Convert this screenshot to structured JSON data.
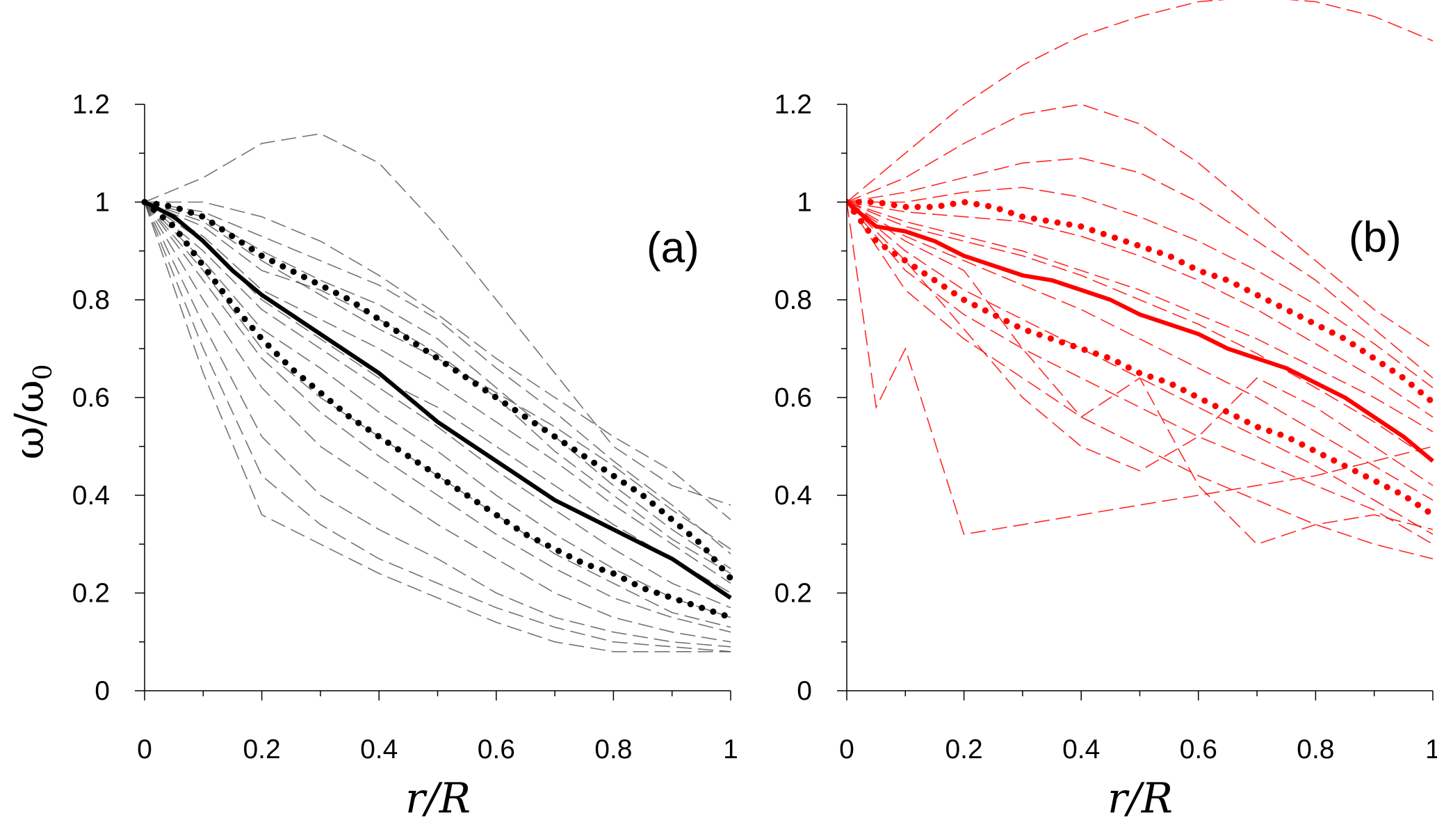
{
  "colors": {
    "left": "#000000",
    "left_trials": "#444444",
    "right": "#ff0000"
  },
  "chart_data": [
    {
      "type": "line",
      "panel_label": "(a)",
      "ylabel": "ω/ω",
      "ylabel_sub": "0",
      "xlabel": "r/R",
      "xlim": [
        0,
        1
      ],
      "ylim": [
        0,
        1.2
      ],
      "x_ticks": [
        "0",
        "0.2",
        "0.4",
        "0.6",
        "0.8",
        "1"
      ],
      "y_ticks": [
        "0",
        "0.2",
        "0.4",
        "0.6",
        "0.8",
        "1",
        "1.2"
      ],
      "mean": {
        "x": [
          0,
          0.05,
          0.1,
          0.15,
          0.2,
          0.25,
          0.3,
          0.35,
          0.4,
          0.45,
          0.5,
          0.55,
          0.6,
          0.65,
          0.7,
          0.75,
          0.8,
          0.85,
          0.9,
          0.95,
          1
        ],
        "y": [
          1,
          0.97,
          0.92,
          0.86,
          0.81,
          0.77,
          0.73,
          0.69,
          0.65,
          0.6,
          0.55,
          0.51,
          0.47,
          0.43,
          0.39,
          0.36,
          0.33,
          0.3,
          0.27,
          0.23,
          0.19
        ]
      },
      "upper_bound": {
        "x": [
          0,
          0.05,
          0.1,
          0.15,
          0.2,
          0.25,
          0.3,
          0.35,
          0.4,
          0.45,
          0.5,
          0.55,
          0.6,
          0.65,
          0.7,
          0.75,
          0.8,
          0.85,
          0.9,
          0.95,
          1
        ],
        "y": [
          1,
          0.99,
          0.97,
          0.93,
          0.89,
          0.86,
          0.83,
          0.8,
          0.76,
          0.72,
          0.68,
          0.64,
          0.6,
          0.56,
          0.52,
          0.48,
          0.44,
          0.4,
          0.35,
          0.3,
          0.23
        ]
      },
      "lower_bound": {
        "x": [
          0,
          0.05,
          0.1,
          0.15,
          0.2,
          0.25,
          0.3,
          0.35,
          0.4,
          0.45,
          0.5,
          0.55,
          0.6,
          0.65,
          0.7,
          0.75,
          0.8,
          0.85,
          0.9,
          0.95,
          1
        ],
        "y": [
          1,
          0.95,
          0.87,
          0.79,
          0.72,
          0.66,
          0.61,
          0.56,
          0.52,
          0.48,
          0.44,
          0.4,
          0.36,
          0.32,
          0.29,
          0.26,
          0.24,
          0.21,
          0.19,
          0.17,
          0.15
        ]
      },
      "trials": [
        {
          "x": [
            0,
            0.1,
            0.2,
            0.3,
            0.4,
            0.5,
            0.6,
            0.7,
            0.8,
            0.9,
            1
          ],
          "y": [
            1,
            1.05,
            1.12,
            1.14,
            1.08,
            0.95,
            0.8,
            0.65,
            0.5,
            0.42,
            0.38
          ]
        },
        {
          "x": [
            0,
            0.1,
            0.2,
            0.3,
            0.4,
            0.5,
            0.6,
            0.7,
            0.8,
            0.9,
            1
          ],
          "y": [
            1,
            1.0,
            0.97,
            0.92,
            0.85,
            0.77,
            0.68,
            0.6,
            0.52,
            0.45,
            0.35
          ]
        },
        {
          "x": [
            0,
            0.1,
            0.2,
            0.3,
            0.4,
            0.5,
            0.6,
            0.7,
            0.8,
            0.9,
            1
          ],
          "y": [
            1,
            0.98,
            0.93,
            0.88,
            0.83,
            0.76,
            0.66,
            0.57,
            0.47,
            0.38,
            0.28
          ]
        },
        {
          "x": [
            0,
            0.1,
            0.2,
            0.3,
            0.4,
            0.5,
            0.6,
            0.7,
            0.8,
            0.9,
            1
          ],
          "y": [
            1,
            0.97,
            0.9,
            0.84,
            0.79,
            0.72,
            0.62,
            0.52,
            0.42,
            0.33,
            0.25
          ]
        },
        {
          "x": [
            0,
            0.1,
            0.2,
            0.3,
            0.4,
            0.5,
            0.6,
            0.7,
            0.8,
            0.9,
            1
          ],
          "y": [
            1,
            0.95,
            0.86,
            0.82,
            0.76,
            0.69,
            0.6,
            0.49,
            0.4,
            0.31,
            0.24
          ]
        },
        {
          "x": [
            0,
            0.1,
            0.2,
            0.3,
            0.4,
            0.5,
            0.6,
            0.7,
            0.8,
            0.9,
            1
          ],
          "y": [
            1,
            0.93,
            0.82,
            0.76,
            0.7,
            0.63,
            0.55,
            0.47,
            0.38,
            0.3,
            0.22
          ]
        },
        {
          "x": [
            0,
            0.1,
            0.2,
            0.3,
            0.4,
            0.5,
            0.6,
            0.7,
            0.8,
            0.9,
            1
          ],
          "y": [
            1,
            0.9,
            0.78,
            0.7,
            0.62,
            0.54,
            0.45,
            0.37,
            0.29,
            0.22,
            0.17
          ]
        },
        {
          "x": [
            0,
            0.1,
            0.2,
            0.3,
            0.4,
            0.5,
            0.6,
            0.7,
            0.8,
            0.9,
            1
          ],
          "y": [
            1,
            0.88,
            0.74,
            0.66,
            0.57,
            0.49,
            0.4,
            0.32,
            0.25,
            0.19,
            0.15
          ]
        },
        {
          "x": [
            0,
            0.1,
            0.2,
            0.3,
            0.4,
            0.5,
            0.6,
            0.7,
            0.8,
            0.9,
            1
          ],
          "y": [
            1,
            0.86,
            0.7,
            0.6,
            0.52,
            0.44,
            0.36,
            0.28,
            0.22,
            0.16,
            0.13
          ]
        },
        {
          "x": [
            0,
            0.1,
            0.2,
            0.3,
            0.4,
            0.5,
            0.6,
            0.7,
            0.8,
            0.9,
            1
          ],
          "y": [
            1,
            0.84,
            0.68,
            0.57,
            0.48,
            0.4,
            0.32,
            0.25,
            0.19,
            0.15,
            0.12
          ]
        },
        {
          "x": [
            0,
            0.1,
            0.2,
            0.3,
            0.4,
            0.5,
            0.6,
            0.7,
            0.8,
            0.9,
            1
          ],
          "y": [
            1,
            0.8,
            0.62,
            0.5,
            0.42,
            0.34,
            0.27,
            0.2,
            0.15,
            0.12,
            0.1
          ]
        },
        {
          "x": [
            0,
            0.1,
            0.2,
            0.3,
            0.4,
            0.5,
            0.6,
            0.7,
            0.8,
            0.9,
            1
          ],
          "y": [
            1,
            0.75,
            0.52,
            0.4,
            0.33,
            0.27,
            0.2,
            0.15,
            0.12,
            0.1,
            0.09
          ]
        },
        {
          "x": [
            0,
            0.1,
            0.2,
            0.3,
            0.4,
            0.5,
            0.6,
            0.7,
            0.8,
            0.9,
            1
          ],
          "y": [
            1,
            0.7,
            0.44,
            0.34,
            0.27,
            0.22,
            0.17,
            0.13,
            0.1,
            0.09,
            0.08
          ]
        },
        {
          "x": [
            0,
            0.1,
            0.2,
            0.3,
            0.4,
            0.5,
            0.6,
            0.7,
            0.8,
            0.9,
            1
          ],
          "y": [
            1,
            0.65,
            0.36,
            0.3,
            0.24,
            0.19,
            0.14,
            0.1,
            0.08,
            0.08,
            0.08
          ]
        },
        {
          "x": [
            0,
            0.1,
            0.2,
            0.3,
            0.4,
            0.5,
            0.6,
            0.7,
            0.8,
            0.9,
            1
          ],
          "y": [
            1,
            0.96,
            0.88,
            0.81,
            0.74,
            0.68,
            0.61,
            0.54,
            0.46,
            0.37,
            0.29
          ]
        },
        {
          "x": [
            0,
            0.1,
            0.2,
            0.3,
            0.4,
            0.5,
            0.6,
            0.7,
            0.8,
            0.9,
            1
          ],
          "y": [
            1,
            0.92,
            0.8,
            0.72,
            0.64,
            0.58,
            0.5,
            0.42,
            0.34,
            0.27,
            0.2
          ]
        }
      ]
    },
    {
      "type": "line",
      "panel_label": "(b)",
      "xlabel": "r/R",
      "xlim": [
        0,
        1
      ],
      "ylim": [
        0,
        1.2
      ],
      "x_ticks": [
        "0",
        "0.2",
        "0.4",
        "0.6",
        "0.8",
        "1"
      ],
      "y_ticks": [
        "0",
        "0.2",
        "0.4",
        "0.6",
        "0.8",
        "1",
        "1.2"
      ],
      "mean": {
        "x": [
          0,
          0.05,
          0.1,
          0.15,
          0.2,
          0.25,
          0.3,
          0.35,
          0.4,
          0.45,
          0.5,
          0.55,
          0.6,
          0.65,
          0.7,
          0.75,
          0.8,
          0.85,
          0.9,
          0.95,
          1
        ],
        "y": [
          1,
          0.95,
          0.94,
          0.92,
          0.89,
          0.87,
          0.85,
          0.84,
          0.82,
          0.8,
          0.77,
          0.75,
          0.73,
          0.7,
          0.68,
          0.66,
          0.63,
          0.6,
          0.56,
          0.52,
          0.47
        ]
      },
      "upper_bound": {
        "x": [
          0,
          0.05,
          0.1,
          0.15,
          0.2,
          0.25,
          0.3,
          0.35,
          0.4,
          0.45,
          0.5,
          0.55,
          0.6,
          0.65,
          0.7,
          0.75,
          0.8,
          0.85,
          0.9,
          0.95,
          1
        ],
        "y": [
          1,
          1.0,
          0.99,
          0.99,
          1.0,
          0.99,
          0.97,
          0.96,
          0.95,
          0.93,
          0.91,
          0.89,
          0.86,
          0.84,
          0.81,
          0.78,
          0.75,
          0.72,
          0.68,
          0.64,
          0.59
        ]
      },
      "lower_bound": {
        "x": [
          0,
          0.05,
          0.1,
          0.15,
          0.2,
          0.25,
          0.3,
          0.35,
          0.4,
          0.45,
          0.5,
          0.55,
          0.6,
          0.65,
          0.7,
          0.75,
          0.8,
          0.85,
          0.9,
          0.95,
          1
        ],
        "y": [
          1,
          0.92,
          0.88,
          0.84,
          0.8,
          0.77,
          0.74,
          0.72,
          0.7,
          0.68,
          0.65,
          0.63,
          0.6,
          0.57,
          0.54,
          0.52,
          0.49,
          0.46,
          0.43,
          0.4,
          0.36
        ]
      },
      "trials": [
        {
          "x": [
            0,
            0.1,
            0.2,
            0.3,
            0.4,
            0.5,
            0.6,
            0.7,
            0.8,
            0.9,
            1
          ],
          "y": [
            1,
            1.1,
            1.2,
            1.28,
            1.34,
            1.38,
            1.41,
            1.42,
            1.41,
            1.38,
            1.33
          ]
        },
        {
          "x": [
            0,
            0.1,
            0.2,
            0.3,
            0.4,
            0.5,
            0.6,
            0.7,
            0.8,
            0.9,
            1
          ],
          "y": [
            1,
            1.05,
            1.12,
            1.18,
            1.2,
            1.16,
            1.08,
            0.98,
            0.88,
            0.78,
            0.7
          ]
        },
        {
          "x": [
            0,
            0.1,
            0.2,
            0.3,
            0.4,
            0.5,
            0.6,
            0.7,
            0.8,
            0.9,
            1
          ],
          "y": [
            1,
            1.02,
            1.05,
            1.08,
            1.09,
            1.06,
            1.0,
            0.92,
            0.84,
            0.74,
            0.64
          ]
        },
        {
          "x": [
            0,
            0.1,
            0.2,
            0.3,
            0.4,
            0.5,
            0.6,
            0.7,
            0.8,
            0.9,
            1
          ],
          "y": [
            1,
            1.0,
            1.02,
            1.03,
            1.01,
            0.97,
            0.92,
            0.86,
            0.79,
            0.71,
            0.62
          ]
        },
        {
          "x": [
            0,
            0.1,
            0.2,
            0.3,
            0.4,
            0.5,
            0.6,
            0.7,
            0.8,
            0.9,
            1
          ],
          "y": [
            1,
            0.98,
            0.97,
            0.96,
            0.93,
            0.89,
            0.84,
            0.78,
            0.71,
            0.64,
            0.56
          ]
        },
        {
          "x": [
            0,
            0.1,
            0.2,
            0.3,
            0.4,
            0.5,
            0.6,
            0.7,
            0.8,
            0.9,
            1
          ],
          "y": [
            1,
            0.95,
            0.92,
            0.89,
            0.85,
            0.8,
            0.75,
            0.69,
            0.62,
            0.55,
            0.47
          ]
        },
        {
          "x": [
            0,
            0.1,
            0.2,
            0.3,
            0.4,
            0.5,
            0.6,
            0.7,
            0.8,
            0.9,
            1
          ],
          "y": [
            1,
            0.93,
            0.88,
            0.83,
            0.78,
            0.72,
            0.66,
            0.6,
            0.53,
            0.46,
            0.39
          ]
        },
        {
          "x": [
            0,
            0.1,
            0.2,
            0.3,
            0.4,
            0.5,
            0.6,
            0.7,
            0.8,
            0.9,
            1
          ],
          "y": [
            1,
            0.9,
            0.82,
            0.76,
            0.7,
            0.64,
            0.58,
            0.52,
            0.46,
            0.39,
            0.32
          ]
        },
        {
          "x": [
            0,
            0.1,
            0.2,
            0.3,
            0.4,
            0.5,
            0.6,
            0.7,
            0.8,
            0.9,
            1
          ],
          "y": [
            1,
            0.86,
            0.77,
            0.7,
            0.64,
            0.58,
            0.52,
            0.47,
            0.42,
            0.37,
            0.3
          ]
        },
        {
          "x": [
            0,
            0.1,
            0.2,
            0.3,
            0.4,
            0.5,
            0.6,
            0.7,
            0.8,
            0.9,
            1
          ],
          "y": [
            1,
            0.82,
            0.72,
            0.64,
            0.56,
            0.5,
            0.44,
            0.39,
            0.34,
            0.3,
            0.27
          ]
        },
        {
          "x": [
            0,
            0.05,
            0.1,
            0.2,
            0.4,
            0.6,
            0.8,
            1
          ],
          "y": [
            1,
            0.58,
            0.7,
            0.32,
            0.36,
            0.4,
            0.44,
            0.5
          ]
        },
        {
          "x": [
            0,
            0.1,
            0.2,
            0.3,
            0.4,
            0.5,
            0.6,
            0.7,
            0.8,
            0.9,
            1
          ],
          "y": [
            1,
            0.88,
            0.74,
            0.6,
            0.5,
            0.45,
            0.52,
            0.64,
            0.58,
            0.5,
            0.42
          ]
        },
        {
          "x": [
            0,
            0.1,
            0.2,
            0.3,
            0.4,
            0.5,
            0.6,
            0.7,
            0.8,
            0.9,
            1
          ],
          "y": [
            1,
            0.92,
            0.86,
            0.7,
            0.56,
            0.64,
            0.42,
            0.3,
            0.34,
            0.36,
            0.33
          ]
        },
        {
          "x": [
            0,
            0.1,
            0.2,
            0.3,
            0.4,
            0.5,
            0.6,
            0.7,
            0.8,
            0.9,
            1
          ],
          "y": [
            1,
            0.96,
            0.93,
            0.9,
            0.86,
            0.82,
            0.77,
            0.72,
            0.66,
            0.6,
            0.53
          ]
        }
      ]
    }
  ]
}
